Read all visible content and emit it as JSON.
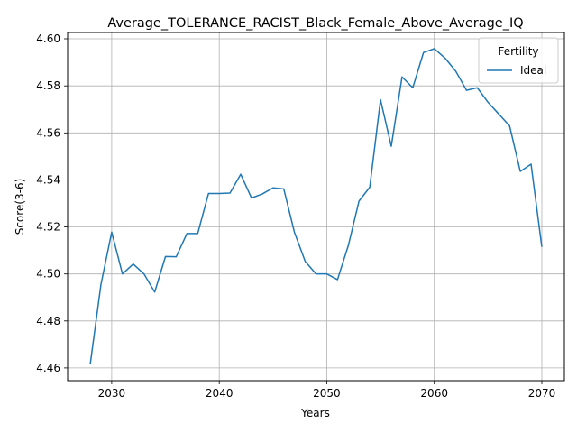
{
  "chart_data": {
    "type": "line",
    "title": "Average_TOLERANCE_RACIST_Black_Female_Above_Average_IQ",
    "xlabel": "Years",
    "ylabel": "Score(3-6)",
    "xlim": [
      2025.9,
      2072.1
    ],
    "ylim": [
      4.4546,
      4.6027
    ],
    "x_ticks": [
      2030,
      2040,
      2050,
      2060,
      2070
    ],
    "y_ticks": [
      4.46,
      4.48,
      4.5,
      4.52,
      4.54,
      4.56,
      4.58,
      4.6
    ],
    "x_tick_labels": [
      "2030",
      "2040",
      "2050",
      "2060",
      "2070"
    ],
    "y_tick_labels": [
      "4.46",
      "4.48",
      "4.50",
      "4.52",
      "4.54",
      "4.56",
      "4.58",
      "4.60"
    ],
    "grid": true,
    "legend": {
      "title": "Fertility",
      "placement": "top-right"
    },
    "series": [
      {
        "name": "Ideal",
        "color": "#1f77b4",
        "x": [
          2028,
          2029,
          2030,
          2031,
          2032,
          2033,
          2034,
          2035,
          2036,
          2037,
          2038,
          2039,
          2040,
          2041,
          2042,
          2043,
          2044,
          2045,
          2046,
          2047,
          2048,
          2049,
          2050,
          2051,
          2052,
          2053,
          2054,
          2055,
          2056,
          2057,
          2058,
          2059,
          2060,
          2061,
          2062,
          2063,
          2064,
          2065,
          2066,
          2067,
          2068,
          2069,
          2070
        ],
        "values": [
          4.4615,
          4.4955,
          4.5178,
          4.5,
          4.5042,
          4.5,
          4.4923,
          4.5074,
          4.5073,
          4.5172,
          4.5172,
          4.5342,
          4.5342,
          4.5344,
          4.5424,
          4.5323,
          4.534,
          4.5366,
          4.5362,
          4.5176,
          4.5053,
          4.5,
          4.5,
          4.4976,
          4.512,
          4.531,
          4.5369,
          4.5741,
          4.5543,
          4.5838,
          4.5792,
          4.5942,
          4.5958,
          4.5918,
          4.5862,
          4.5781,
          4.5792,
          4.573,
          4.568,
          4.563,
          4.5436,
          4.5467,
          4.5115
        ]
      }
    ]
  }
}
